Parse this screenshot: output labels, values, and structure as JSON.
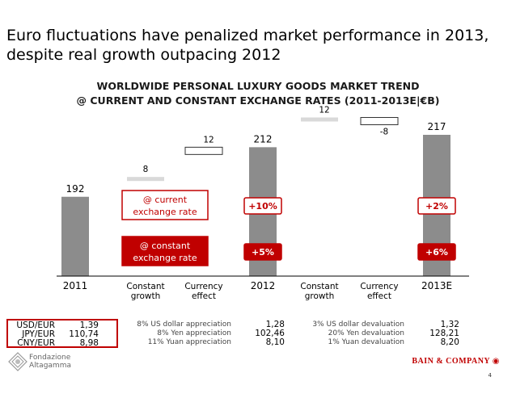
{
  "title": "Euro fluctuations have penalized market performance in 2013, despite real growth outpacing 2012",
  "subtitle_line1": "WORLDWIDE PERSONAL LUXURY GOODS MARKET TREND",
  "subtitle_line2": "@ CURRENT AND CONSTANT EXCHANGE RATES (2011-2013E|€B)",
  "colors": {
    "bar": "#8c8c8c",
    "light_bar": "#d9d9d9",
    "red": "#c00000",
    "text": "#000000"
  },
  "chart_data": {
    "type": "bar",
    "subtype": "waterfall",
    "categories": [
      "2011",
      "Constant growth",
      "Currency effect",
      "2012",
      "Constant growth",
      "Currency effect",
      "2013E"
    ],
    "category_lines": [
      [
        "2011"
      ],
      [
        "Constant",
        "growth"
      ],
      [
        "Currency",
        "effect"
      ],
      [
        "2012"
      ],
      [
        "Constant",
        "growth"
      ],
      [
        "Currency",
        "effect"
      ],
      [
        "2013E"
      ]
    ],
    "values": [
      192,
      8,
      12,
      212,
      12,
      -8,
      217
    ],
    "value_labels": [
      "192",
      "8",
      "12",
      "212",
      "12",
      "-8",
      "217"
    ],
    "kinds": [
      "total",
      "delta",
      "delta",
      "total",
      "delta",
      "delta",
      "total"
    ],
    "growth_badges": [
      {
        "current": "+10%",
        "constant": "+5%"
      },
      {
        "current": "+2%",
        "constant": "+6%"
      }
    ],
    "legend": {
      "current_lines": [
        "@ current",
        "exchange rate"
      ],
      "constant_lines": [
        "@ constant",
        "exchange rate"
      ]
    }
  },
  "fx_rates": {
    "labels": [
      "USD/EUR",
      "JPY/EUR",
      "CNY/EUR"
    ],
    "y2011": [
      "1,39",
      "110,74",
      "8,98"
    ],
    "y2012": [
      "1,28",
      "102,46",
      "8,10"
    ],
    "y2013": [
      "1,32",
      "128,21",
      "8,20"
    ]
  },
  "notes_2012": [
    "8% US dollar appreciation",
    "8% Yen appreciation",
    "11% Yuan appreciation"
  ],
  "notes_2013": [
    "3% US dollar devaluation",
    "20% Yen devaluation",
    "1% Yuan devaluation"
  ],
  "foundation_name": [
    "Fondazione",
    "Altagamma"
  ],
  "bain_logo": "BAIN & COMPANY",
  "page_number": "4"
}
